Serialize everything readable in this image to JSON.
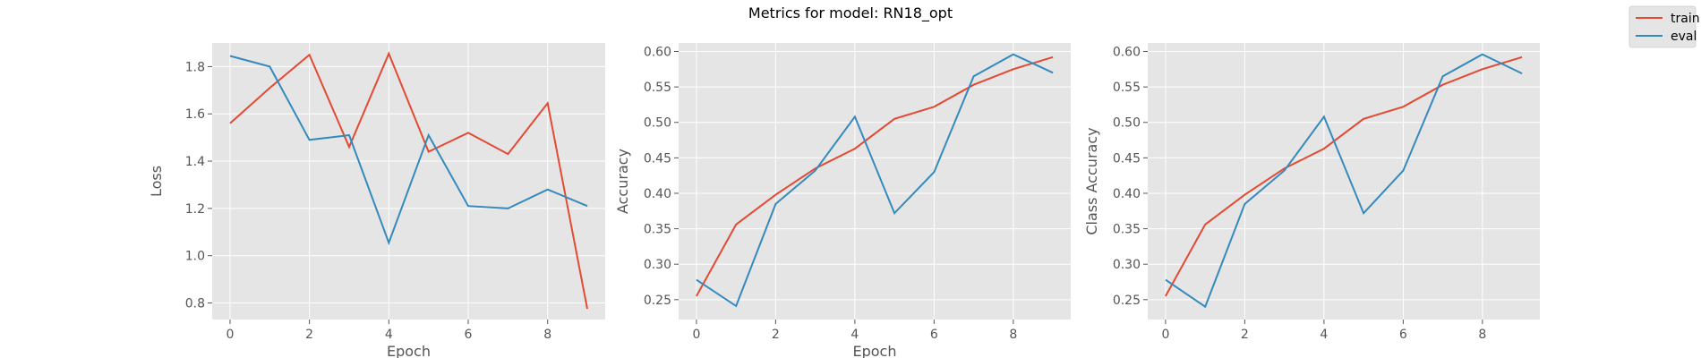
{
  "figure": {
    "title": "Metrics for model: RN18_opt",
    "legend": [
      {
        "name": "train",
        "color": "#E24A33"
      },
      {
        "name": "eval",
        "color": "#348ABD"
      }
    ],
    "legend_position": "top-right",
    "style": {
      "panel_bg": "#E5E5E5",
      "grid_color": "#ffffff",
      "text_color": "#555555"
    }
  },
  "chart_data": [
    {
      "type": "line",
      "xlabel": "Epoch",
      "ylabel": "Loss",
      "x": [
        0,
        1,
        2,
        3,
        4,
        5,
        6,
        7,
        8,
        9
      ],
      "xlim": [
        -0.45,
        9.45
      ],
      "ylim": [
        0.73,
        1.9
      ],
      "xticks": [
        0,
        2,
        4,
        6,
        8
      ],
      "yticks": [
        0.8,
        1.0,
        1.2,
        1.4,
        1.6,
        1.8
      ],
      "ytick_labels": [
        "0.8",
        "1.0",
        "1.2",
        "1.4",
        "1.6",
        "1.8"
      ],
      "grid": true,
      "series": [
        {
          "name": "train",
          "color": "#E24A33",
          "values": [
            1.56,
            1.71,
            1.85,
            1.46,
            1.855,
            1.44,
            1.52,
            1.43,
            1.645,
            0.775
          ]
        },
        {
          "name": "eval",
          "color": "#348ABD",
          "values": [
            1.845,
            1.8,
            1.49,
            1.51,
            1.055,
            1.51,
            1.21,
            1.2,
            1.28,
            1.21
          ]
        }
      ]
    },
    {
      "type": "line",
      "xlabel": "Epoch",
      "ylabel": "Accuracy",
      "x": [
        0,
        1,
        2,
        3,
        4,
        5,
        6,
        7,
        8,
        9
      ],
      "xlim": [
        -0.45,
        9.45
      ],
      "ylim": [
        0.222,
        0.612
      ],
      "xticks": [
        0,
        2,
        4,
        6,
        8
      ],
      "yticks": [
        0.25,
        0.3,
        0.35,
        0.4,
        0.45,
        0.5,
        0.55,
        0.6
      ],
      "ytick_labels": [
        "0.25",
        "0.30",
        "0.35",
        "0.40",
        "0.45",
        "0.50",
        "0.55",
        "0.60"
      ],
      "grid": true,
      "series": [
        {
          "name": "train",
          "color": "#E24A33",
          "values": [
            0.255,
            0.356,
            0.398,
            0.435,
            0.463,
            0.505,
            0.522,
            0.553,
            0.575,
            0.592
          ]
        },
        {
          "name": "eval",
          "color": "#348ABD",
          "values": [
            0.278,
            0.241,
            0.385,
            0.432,
            0.508,
            0.372,
            0.43,
            0.565,
            0.596,
            0.57
          ]
        }
      ]
    },
    {
      "type": "line",
      "xlabel": "",
      "ylabel": "Class Accuracy",
      "x": [
        0,
        1,
        2,
        3,
        4,
        5,
        6,
        7,
        8,
        9
      ],
      "xlim": [
        -0.45,
        9.45
      ],
      "ylim": [
        0.222,
        0.612
      ],
      "xticks": [
        0,
        2,
        4,
        6,
        8
      ],
      "yticks": [
        0.25,
        0.3,
        0.35,
        0.4,
        0.45,
        0.5,
        0.55,
        0.6
      ],
      "ytick_labels": [
        "0.25",
        "0.30",
        "0.35",
        "0.40",
        "0.45",
        "0.50",
        "0.55",
        "0.60"
      ],
      "grid": true,
      "series": [
        {
          "name": "train",
          "color": "#E24A33",
          "values": [
            0.255,
            0.356,
            0.398,
            0.435,
            0.463,
            0.505,
            0.522,
            0.553,
            0.575,
            0.592
          ]
        },
        {
          "name": "eval",
          "color": "#348ABD",
          "values": [
            0.278,
            0.24,
            0.385,
            0.432,
            0.508,
            0.372,
            0.432,
            0.565,
            0.596,
            0.569
          ]
        }
      ]
    }
  ]
}
